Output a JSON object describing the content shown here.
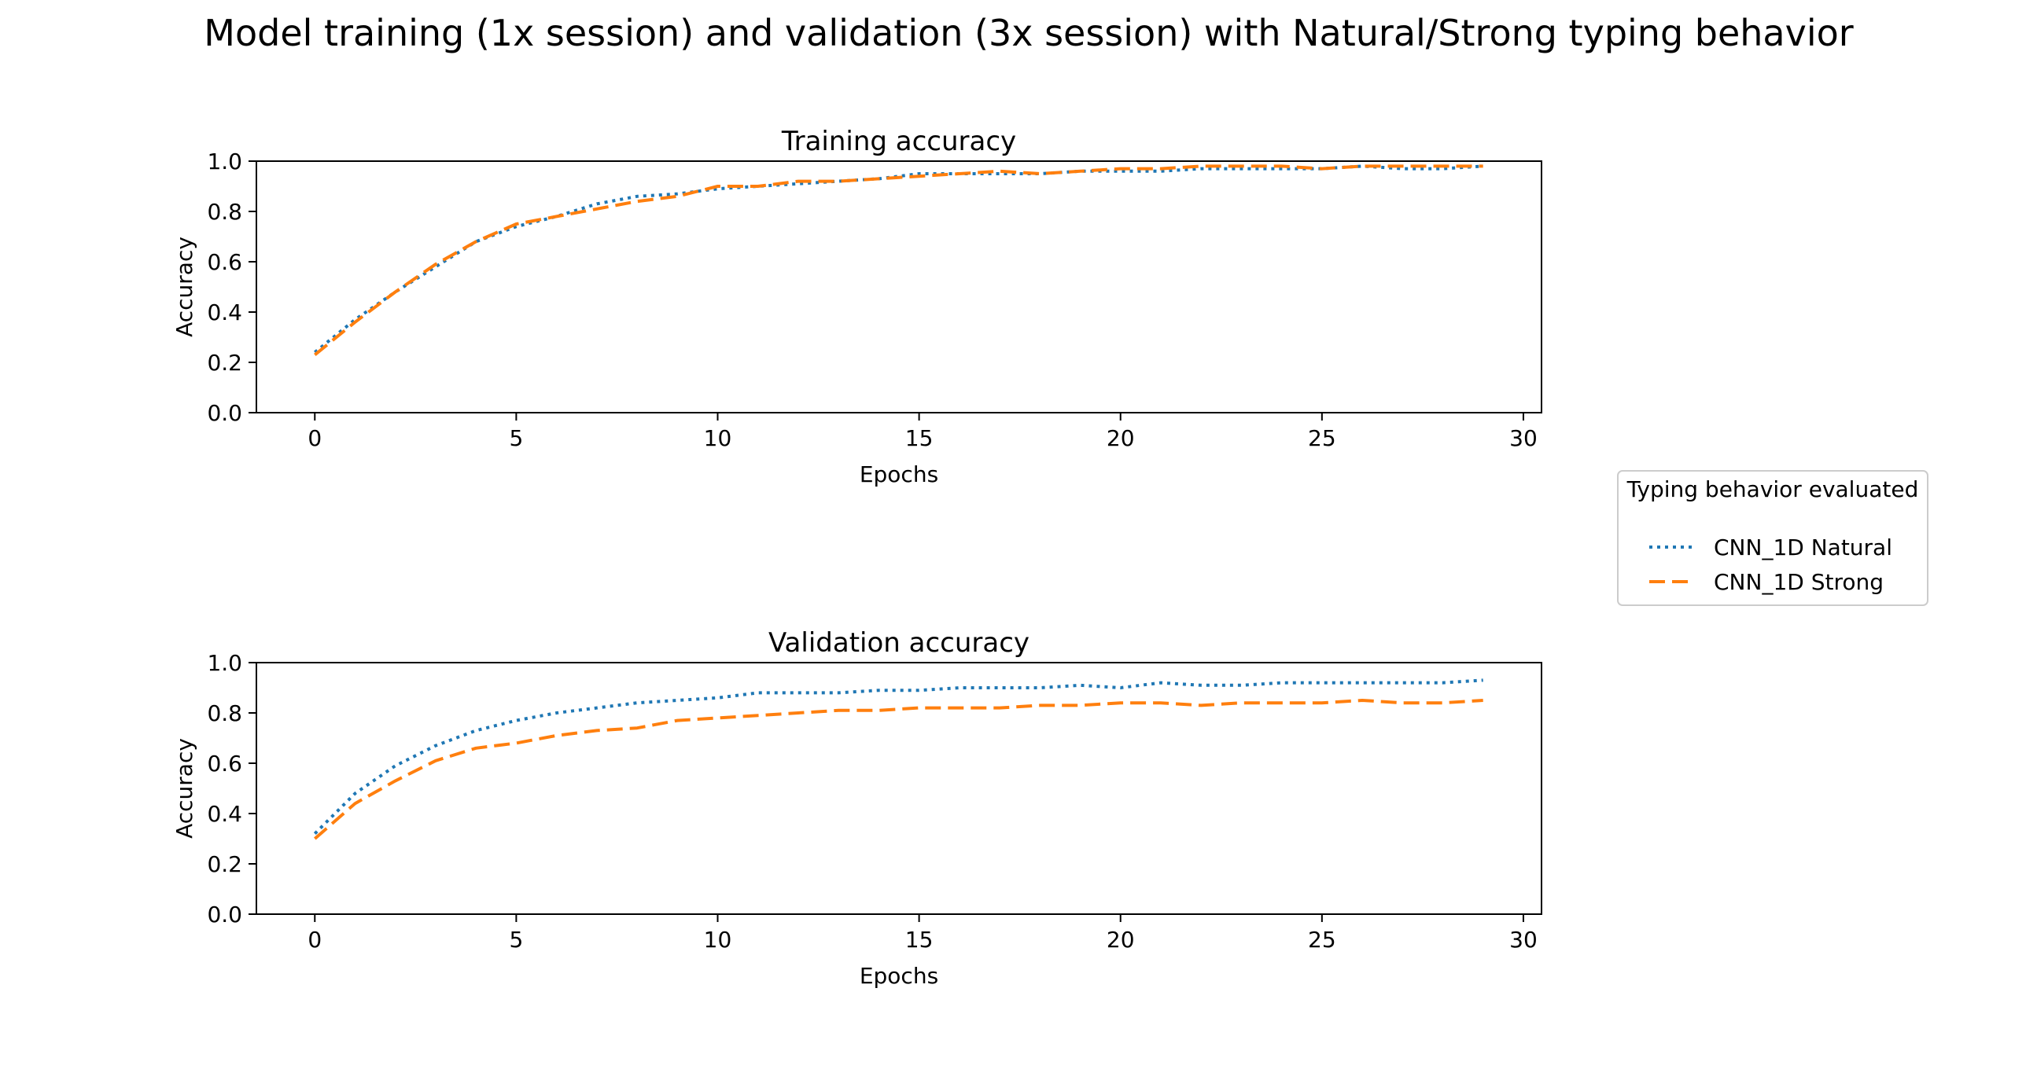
{
  "figure": {
    "suptitle": "Model training (1x session) and validation (3x session) with Natural/Strong typing behavior"
  },
  "legend": {
    "title": "Typing behavior evaluated",
    "placement": "right-center",
    "entries": [
      {
        "label": "CNN_1D Natural",
        "color": "#1f77b4",
        "style": "dotted"
      },
      {
        "label": "CNN_1D Strong",
        "color": "#ff7f0e",
        "style": "dashed"
      }
    ]
  },
  "chart_data": [
    {
      "type": "line",
      "title": "Training accuracy",
      "xlabel": "Epochs",
      "ylabel": "Accuracy",
      "xlim": [
        -1.45,
        30.45
      ],
      "ylim": [
        0.0,
        1.0
      ],
      "xticks": [
        0,
        5,
        10,
        15,
        20,
        25,
        30
      ],
      "yticks": [
        0.0,
        0.2,
        0.4,
        0.6,
        0.8,
        1.0
      ],
      "ytick_labels": [
        "0.0",
        "0.2",
        "0.4",
        "0.6",
        "0.8",
        "1.0"
      ],
      "grid": false,
      "x": [
        0,
        1,
        2,
        3,
        4,
        5,
        6,
        7,
        8,
        9,
        10,
        11,
        12,
        13,
        14,
        15,
        16,
        17,
        18,
        19,
        20,
        21,
        22,
        23,
        24,
        25,
        26,
        27,
        28,
        29
      ],
      "series": [
        {
          "name": "CNN_1D Natural",
          "color": "#1f77b4",
          "style": "dotted",
          "values": [
            0.24,
            0.37,
            0.48,
            0.58,
            0.68,
            0.74,
            0.78,
            0.83,
            0.86,
            0.87,
            0.89,
            0.9,
            0.91,
            0.92,
            0.93,
            0.95,
            0.95,
            0.95,
            0.95,
            0.96,
            0.96,
            0.96,
            0.97,
            0.97,
            0.97,
            0.97,
            0.98,
            0.97,
            0.97,
            0.98
          ]
        },
        {
          "name": "CNN_1D Strong",
          "color": "#ff7f0e",
          "style": "dashed",
          "values": [
            0.23,
            0.36,
            0.48,
            0.59,
            0.68,
            0.75,
            0.78,
            0.81,
            0.84,
            0.86,
            0.9,
            0.9,
            0.92,
            0.92,
            0.93,
            0.94,
            0.95,
            0.96,
            0.95,
            0.96,
            0.97,
            0.97,
            0.98,
            0.98,
            0.98,
            0.97,
            0.98,
            0.98,
            0.98,
            0.98
          ]
        }
      ]
    },
    {
      "type": "line",
      "title": "Validation accuracy",
      "xlabel": "Epochs",
      "ylabel": "Accuracy",
      "xlim": [
        -1.45,
        30.45
      ],
      "ylim": [
        0.0,
        1.0
      ],
      "xticks": [
        0,
        5,
        10,
        15,
        20,
        25,
        30
      ],
      "yticks": [
        0.0,
        0.2,
        0.4,
        0.6,
        0.8,
        1.0
      ],
      "ytick_labels": [
        "0.0",
        "0.2",
        "0.4",
        "0.6",
        "0.8",
        "1.0"
      ],
      "grid": false,
      "x": [
        0,
        1,
        2,
        3,
        4,
        5,
        6,
        7,
        8,
        9,
        10,
        11,
        12,
        13,
        14,
        15,
        16,
        17,
        18,
        19,
        20,
        21,
        22,
        23,
        24,
        25,
        26,
        27,
        28,
        29
      ],
      "series": [
        {
          "name": "CNN_1D Natural",
          "color": "#1f77b4",
          "style": "dotted",
          "values": [
            0.32,
            0.48,
            0.59,
            0.67,
            0.73,
            0.77,
            0.8,
            0.82,
            0.84,
            0.85,
            0.86,
            0.88,
            0.88,
            0.88,
            0.89,
            0.89,
            0.9,
            0.9,
            0.9,
            0.91,
            0.9,
            0.92,
            0.91,
            0.91,
            0.92,
            0.92,
            0.92,
            0.92,
            0.92,
            0.93
          ]
        },
        {
          "name": "CNN_1D Strong",
          "color": "#ff7f0e",
          "style": "dashed",
          "values": [
            0.3,
            0.44,
            0.53,
            0.61,
            0.66,
            0.68,
            0.71,
            0.73,
            0.74,
            0.77,
            0.78,
            0.79,
            0.8,
            0.81,
            0.81,
            0.82,
            0.82,
            0.82,
            0.83,
            0.83,
            0.84,
            0.84,
            0.83,
            0.84,
            0.84,
            0.84,
            0.85,
            0.84,
            0.84,
            0.85
          ]
        }
      ]
    }
  ]
}
